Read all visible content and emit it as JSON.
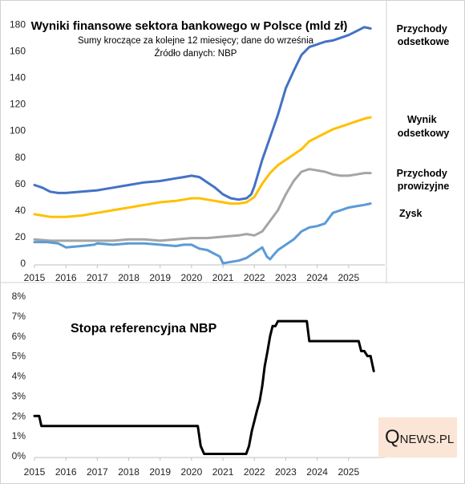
{
  "chart_data": [
    {
      "type": "line",
      "title": "Wyniki finansowe sektora bankowego w Polsce (mld zł)",
      "subtitle": "Sumy kroczące za kolejne 12 miesięcy; dane do września",
      "source": "Źródło danych: NBP",
      "xlim": [
        2015,
        2026
      ],
      "ylim": [
        0,
        190
      ],
      "yticks": [
        0,
        20,
        40,
        60,
        80,
        100,
        120,
        140,
        160,
        180
      ],
      "xticks": [
        2015,
        2016,
        2017,
        2018,
        2019,
        2020,
        2021,
        2022,
        2023,
        2024,
        2025
      ],
      "grid": false,
      "legend": "right-labels",
      "series": [
        {
          "name": "Przychody odsetkowe",
          "color": "#4472C4",
          "x": [
            2015.0,
            2015.25,
            2015.5,
            2015.75,
            2016.0,
            2016.5,
            2017.0,
            2017.5,
            2018.0,
            2018.5,
            2019.0,
            2019.5,
            2019.75,
            2020.0,
            2020.25,
            2020.5,
            2020.75,
            2021.0,
            2021.25,
            2021.5,
            2021.75,
            2021.9,
            2022.0,
            2022.25,
            2022.5,
            2022.75,
            2023.0,
            2023.25,
            2023.5,
            2023.75,
            2024.0,
            2024.25,
            2024.5,
            2024.75,
            2025.0,
            2025.25,
            2025.5,
            2025.7
          ],
          "values": [
            59,
            57,
            54,
            53,
            53,
            54,
            55,
            57,
            59,
            61,
            62,
            64,
            65,
            66,
            65,
            61,
            57,
            52,
            49,
            48,
            49,
            52,
            58,
            78,
            95,
            112,
            132,
            145,
            157,
            163,
            165,
            167,
            168,
            170,
            172,
            175,
            178,
            177
          ]
        },
        {
          "name": "Wynik odsetkowy",
          "color": "#FFC000",
          "x": [
            2015.0,
            2015.5,
            2016.0,
            2016.5,
            2017.0,
            2017.5,
            2018.0,
            2018.5,
            2019.0,
            2019.5,
            2019.75,
            2020.0,
            2020.25,
            2020.5,
            2020.75,
            2021.0,
            2021.25,
            2021.5,
            2021.75,
            2022.0,
            2022.25,
            2022.5,
            2022.75,
            2023.0,
            2023.25,
            2023.5,
            2023.75,
            2024.0,
            2024.25,
            2024.5,
            2024.75,
            2025.0,
            2025.25,
            2025.5,
            2025.7
          ],
          "values": [
            37,
            35,
            35,
            36,
            38,
            40,
            42,
            44,
            46,
            47,
            48,
            49,
            49,
            48,
            47,
            46,
            45,
            45,
            46,
            50,
            60,
            68,
            74,
            78,
            82,
            86,
            92,
            95,
            98,
            101,
            103,
            105,
            107,
            109,
            110
          ]
        },
        {
          "name": "Przychody prowizyjne",
          "color": "#A5A5A5",
          "x": [
            2015.0,
            2015.5,
            2016.0,
            2016.5,
            2017.0,
            2017.5,
            2018.0,
            2018.5,
            2019.0,
            2019.5,
            2020.0,
            2020.5,
            2021.0,
            2021.5,
            2021.75,
            2022.0,
            2022.25,
            2022.5,
            2022.75,
            2023.0,
            2023.25,
            2023.5,
            2023.75,
            2024.0,
            2024.25,
            2024.5,
            2024.75,
            2025.0,
            2025.25,
            2025.5,
            2025.7
          ],
          "values": [
            18,
            17,
            17,
            17,
            17,
            17,
            18,
            18,
            17,
            18,
            19,
            19,
            20,
            21,
            22,
            21,
            24,
            32,
            40,
            52,
            62,
            69,
            71,
            70,
            69,
            67,
            66,
            66,
            67,
            68,
            68
          ]
        },
        {
          "name": "Zysk",
          "color": "#5B9BD5",
          "x": [
            2015.0,
            2015.4,
            2015.75,
            2016.0,
            2016.5,
            2016.9,
            2017.0,
            2017.5,
            2018.0,
            2018.5,
            2019.0,
            2019.5,
            2019.75,
            2020.0,
            2020.25,
            2020.5,
            2020.9,
            2021.0,
            2021.25,
            2021.5,
            2021.75,
            2022.0,
            2022.25,
            2022.4,
            2022.5,
            2022.6,
            2022.75,
            2023.0,
            2023.25,
            2023.5,
            2023.75,
            2024.0,
            2024.25,
            2024.5,
            2024.75,
            2025.0,
            2025.25,
            2025.5,
            2025.7
          ],
          "values": [
            16,
            16,
            15,
            12,
            13,
            14,
            15,
            14,
            15,
            15,
            14,
            13,
            14,
            14,
            11,
            10,
            5,
            0,
            1,
            2,
            4,
            8,
            12,
            5,
            3,
            6,
            10,
            14,
            18,
            24,
            27,
            28,
            30,
            38,
            40,
            42,
            43,
            44,
            45
          ]
        }
      ]
    },
    {
      "type": "line",
      "title": "Stopa referencyjna NBP",
      "xlim": [
        2015,
        2026
      ],
      "ylim": [
        0,
        8
      ],
      "yticks": [
        "0%",
        "1%",
        "2%",
        "3%",
        "4%",
        "5%",
        "6%",
        "7%",
        "8%"
      ],
      "xticks": [
        2015,
        2016,
        2017,
        2018,
        2019,
        2020,
        2021,
        2022,
        2023,
        2024,
        2025
      ],
      "grid": false,
      "series": [
        {
          "color": "#000000",
          "x": [
            2015.0,
            2015.15,
            2015.22,
            2020.2,
            2020.29,
            2020.4,
            2021.74,
            2021.83,
            2021.92,
            2022.0,
            2022.08,
            2022.17,
            2022.25,
            2022.33,
            2022.42,
            2022.5,
            2022.58,
            2022.67,
            2022.75,
            2023.67,
            2023.75,
            2025.32,
            2025.4,
            2025.5,
            2025.6,
            2025.7,
            2025.8
          ],
          "values": [
            2.0,
            2.0,
            1.5,
            1.5,
            0.5,
            0.1,
            0.1,
            0.5,
            1.25,
            1.75,
            2.25,
            2.75,
            3.5,
            4.5,
            5.25,
            6.0,
            6.5,
            6.5,
            6.75,
            6.75,
            5.75,
            5.75,
            5.25,
            5.25,
            5.0,
            5.0,
            4.25
          ]
        }
      ]
    }
  ],
  "logo": {
    "q": "Q",
    "news": "NEWS.PL"
  }
}
